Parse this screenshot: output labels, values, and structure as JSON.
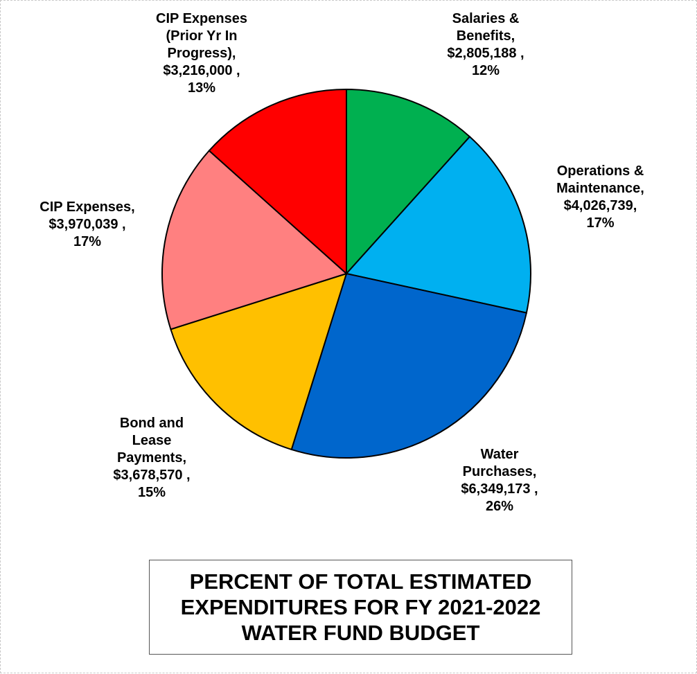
{
  "chart_data": {
    "type": "pie",
    "title": [
      "PERCENT OF TOTAL ESTIMATED",
      "EXPENDITURES FOR FY 2021-2022",
      "WATER FUND BUDGET"
    ],
    "slices": [
      {
        "name": "Salaries & Benefits",
        "value": 2805188,
        "percent": 12,
        "color": "#00B050",
        "label_lines": [
          "Salaries &",
          "Benefits,",
          "$2,805,188 ,",
          "12%"
        ]
      },
      {
        "name": "Operations & Maintenance",
        "value": 4026739,
        "percent": 17,
        "color": "#00B0F0",
        "label_lines": [
          "Operations &",
          "Maintenance,",
          "$4,026,739,",
          "17%"
        ]
      },
      {
        "name": "Water Purchases",
        "value": 6349173,
        "percent": 26,
        "color": "#0066CC",
        "label_lines": [
          "Water",
          "Purchases,",
          "$6,349,173 ,",
          "26%"
        ]
      },
      {
        "name": "Bond and Lease Payments",
        "value": 3678570,
        "percent": 15,
        "color": "#FFC000",
        "label_lines": [
          "Bond and",
          "Lease",
          "Payments,",
          "$3,678,570 ,",
          "15%"
        ]
      },
      {
        "name": "CIP Expenses",
        "value": 3970039,
        "percent": 17,
        "color": "#FF8080",
        "label_lines": [
          "CIP Expenses,",
          "$3,970,039 ,",
          "17%"
        ]
      },
      {
        "name": "CIP Expenses (Prior Yr In Progress)",
        "value": 3216000,
        "percent": 13,
        "color": "#FF0000",
        "label_lines": [
          "CIP Expenses",
          "(Prior Yr In",
          "Progress),",
          "$3,216,000 ,",
          "13%"
        ]
      }
    ],
    "start_angle": "12 o'clock",
    "direction": "clockwise",
    "legend": "none (data labels outside slices)"
  }
}
